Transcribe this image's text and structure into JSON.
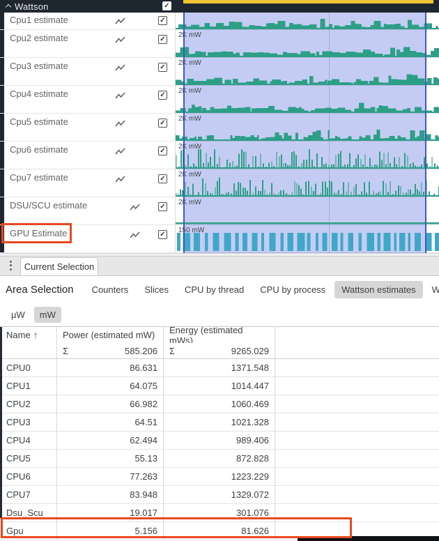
{
  "colors": {
    "cpu_chart": "#2d9f87",
    "gpu_chart": "#3fa8c9",
    "selection_overlay": "#93a0e8",
    "selection_border": "#4356c6",
    "minimap_viewport": "#f2c335",
    "annotation": "#e8481e",
    "group_header_bg": "#1e2630"
  },
  "icons": {
    "collapse": "chevron-up",
    "kebab": "vertical-dots",
    "track_type": "line-chart",
    "checkbox_check": "✓",
    "sort_asc": "↑"
  },
  "timeline": {
    "group_label": "Wattson",
    "tracks": [
      {
        "name": "Cpu1 estimate",
        "scale_label": "",
        "pattern": "band",
        "checked": true
      },
      {
        "name": "Cpu2 estimate",
        "scale_label": "2K mW",
        "pattern": "band",
        "checked": true
      },
      {
        "name": "Cpu3 estimate",
        "scale_label": "2K mW",
        "pattern": "band",
        "checked": true
      },
      {
        "name": "Cpu4 estimate",
        "scale_label": "2K mW",
        "pattern": "band",
        "checked": true
      },
      {
        "name": "Cpu5 estimate",
        "scale_label": "2K mW",
        "pattern": "band2",
        "checked": true
      },
      {
        "name": "Cpu6 estimate",
        "scale_label": "2K mW",
        "pattern": "spikes",
        "checked": true
      },
      {
        "name": "Cpu7 estimate",
        "scale_label": "2K mW",
        "pattern": "spikes",
        "checked": true
      },
      {
        "name": "DSU/SCU estimate",
        "scale_label": "2K mW",
        "pattern": "flat",
        "checked": true
      },
      {
        "name": "GPU Estimate",
        "scale_label": "150 mW",
        "pattern": "gpu",
        "checked": true,
        "annotated": true
      }
    ]
  },
  "tabs_bar": {
    "active_tab": "Current Selection"
  },
  "selection_panel": {
    "title": "Area Selection",
    "tabs": [
      "Counters",
      "Slices",
      "CPU by thread",
      "CPU by process",
      "Wattson estimates",
      "Wattson by"
    ],
    "active_tab": "Wattson estimates",
    "units": [
      "µW",
      "mW"
    ],
    "active_unit": "mW"
  },
  "table": {
    "columns": {
      "name": "Name",
      "power": "Power (estimated mW)",
      "energy": "Energy (estimated mWs)"
    },
    "sum_symbol": "Σ",
    "sum_row": {
      "power": "585.206",
      "energy": "9265.029"
    },
    "rows": [
      {
        "name": "CPU0",
        "power": "86.631",
        "energy": "1371.548"
      },
      {
        "name": "CPU1",
        "power": "64.075",
        "energy": "1014.447"
      },
      {
        "name": "CPU2",
        "power": "66.982",
        "energy": "1060.469"
      },
      {
        "name": "CPU3",
        "power": "64.51",
        "energy": "1021.328"
      },
      {
        "name": "CPU4",
        "power": "62.494",
        "energy": "989.406"
      },
      {
        "name": "CPU5",
        "power": "55.13",
        "energy": "872.828"
      },
      {
        "name": "CPU6",
        "power": "77.263",
        "energy": "1223.229"
      },
      {
        "name": "CPU7",
        "power": "83.948",
        "energy": "1329.072"
      },
      {
        "name": "Dsu_Scu",
        "power": "19.017",
        "energy": "301.076"
      },
      {
        "name": "Gpu",
        "power": "5.156",
        "energy": "81.626",
        "annotated": true
      }
    ]
  }
}
